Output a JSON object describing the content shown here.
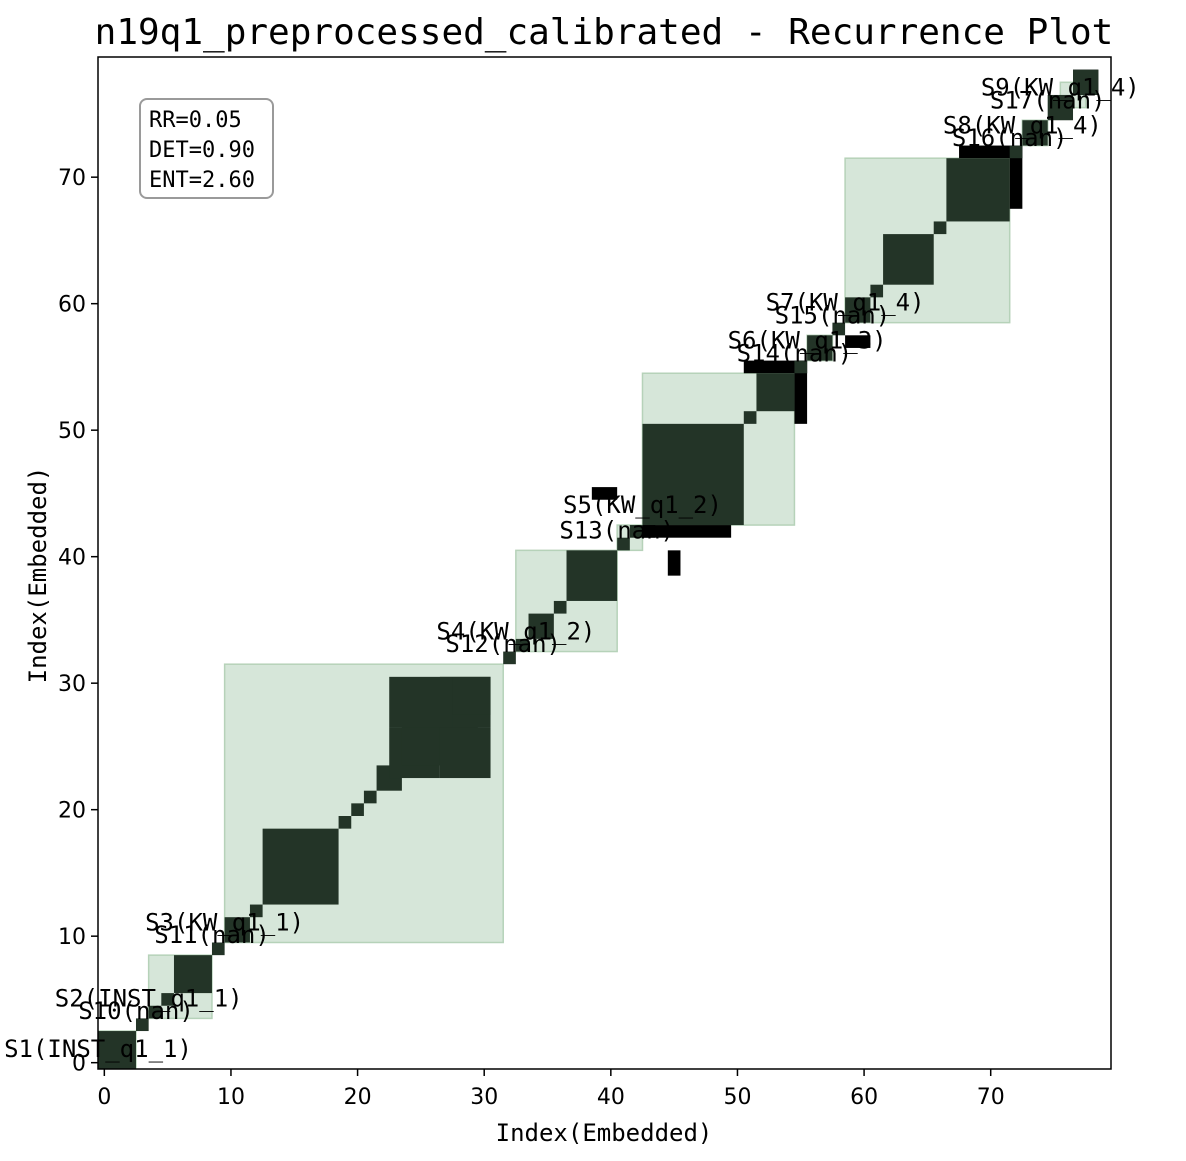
{
  "chart_data": {
    "type": "heatmap",
    "title": "n19q1_preprocessed_calibrated - Recurrence Plot",
    "xlabel": "Index(Embedded)",
    "ylabel": "Index(Embedded)",
    "xlim": [
      -0.5,
      79.5
    ],
    "ylim": [
      -0.5,
      79.5
    ],
    "xticks": [
      0,
      10,
      20,
      30,
      40,
      50,
      60,
      70
    ],
    "yticks": [
      0,
      10,
      20,
      30,
      40,
      50,
      60,
      70
    ],
    "colors": {
      "recurrence": "#233427",
      "highlight": "#d6e6d9",
      "highlight_edge": "#b6d2b9",
      "off_segment": "#000000"
    },
    "stats": [
      "RR=0.05",
      "DET=0.90",
      "ENT=2.60"
    ],
    "segments": [
      {
        "label": "S1(INST_q1_1)",
        "start": 0,
        "end": 3
      },
      {
        "label": "S10(nan)",
        "start": 3,
        "end": 4
      },
      {
        "label": "S2(INST_q1_1)",
        "start": 4,
        "end": 9
      },
      {
        "label": "S11(nan)",
        "start": 9,
        "end": 10
      },
      {
        "label": "S3(KW_q1_1)",
        "start": 10,
        "end": 32
      },
      {
        "label": "S12(nan)",
        "start": 32,
        "end": 33
      },
      {
        "label": "S4(KW_q1_2)",
        "start": 33,
        "end": 41
      },
      {
        "label": "S13(nan)",
        "start": 41,
        "end": 43
      },
      {
        "label": "S5(KW_q1_2)",
        "start": 43,
        "end": 55
      },
      {
        "label": "S14(nan)",
        "start": 55,
        "end": 56
      },
      {
        "label": "S6(KW_q1_3)",
        "start": 56,
        "end": 58
      },
      {
        "label": "S15(nan)",
        "start": 58,
        "end": 59
      },
      {
        "label": "S7(KW_q1_4)",
        "start": 59,
        "end": 72
      },
      {
        "label": "S16(nan)",
        "start": 72,
        "end": 73
      },
      {
        "label": "S8(KW_q1_4)",
        "start": 73,
        "end": 75
      },
      {
        "label": "S17(nan)",
        "start": 75,
        "end": 76
      },
      {
        "label": "S9(KW_q1_4)",
        "start": 76,
        "end": 78
      }
    ],
    "recurrence_blocks": [
      [
        0,
        3,
        0,
        3
      ],
      [
        3,
        4,
        3,
        4
      ],
      [
        4,
        5,
        4,
        5
      ],
      [
        5,
        6,
        5,
        6
      ],
      [
        6,
        9,
        6,
        9
      ],
      [
        9,
        10,
        9,
        10
      ],
      [
        10,
        12,
        10,
        12
      ],
      [
        12,
        13,
        12,
        13
      ],
      [
        13,
        19,
        13,
        19
      ],
      [
        19,
        20,
        19,
        20
      ],
      [
        20,
        21,
        20,
        21
      ],
      [
        21,
        22,
        21,
        22
      ],
      [
        22,
        24,
        22,
        24
      ],
      [
        23,
        27,
        23,
        27
      ],
      [
        24,
        30,
        24,
        30
      ],
      [
        27,
        31,
        27,
        31
      ],
      [
        28,
        31,
        28,
        31
      ],
      [
        23,
        28,
        27,
        31
      ],
      [
        27,
        31,
        23,
        27
      ],
      [
        32,
        33,
        32,
        33
      ],
      [
        33,
        34,
        33,
        34
      ],
      [
        34,
        36,
        34,
        36
      ],
      [
        36,
        37,
        36,
        37
      ],
      [
        37,
        41,
        37,
        41
      ],
      [
        41,
        42,
        41,
        42
      ],
      [
        42,
        43,
        42,
        43
      ],
      [
        43,
        51,
        43,
        51
      ],
      [
        51,
        52,
        51,
        52
      ],
      [
        52,
        55,
        52,
        55
      ],
      [
        55,
        56,
        55,
        56
      ],
      [
        56,
        58,
        56,
        58
      ],
      [
        58,
        59,
        58,
        59
      ],
      [
        59,
        61,
        59,
        61
      ],
      [
        61,
        62,
        61,
        62
      ],
      [
        62,
        66,
        62,
        66
      ],
      [
        66,
        67,
        66,
        67
      ],
      [
        67,
        72,
        67,
        72
      ],
      [
        72,
        73,
        72,
        73
      ],
      [
        73,
        75,
        73,
        75
      ],
      [
        75,
        77,
        75,
        77
      ],
      [
        77,
        79,
        77,
        79
      ]
    ],
    "off_segment_blocks": [
      [
        0,
        2,
        -0.5,
        0
      ],
      [
        39,
        41,
        45,
        46
      ],
      [
        45,
        46,
        39,
        41
      ],
      [
        43,
        44,
        42,
        50
      ],
      [
        43,
        50,
        42,
        43
      ],
      [
        51,
        56,
        55,
        56
      ],
      [
        55,
        56,
        51,
        56
      ],
      [
        59,
        61,
        57,
        58
      ],
      [
        72,
        73,
        68,
        73
      ],
      [
        68,
        73,
        72,
        73
      ],
      [
        77,
        79,
        77,
        79
      ]
    ]
  }
}
